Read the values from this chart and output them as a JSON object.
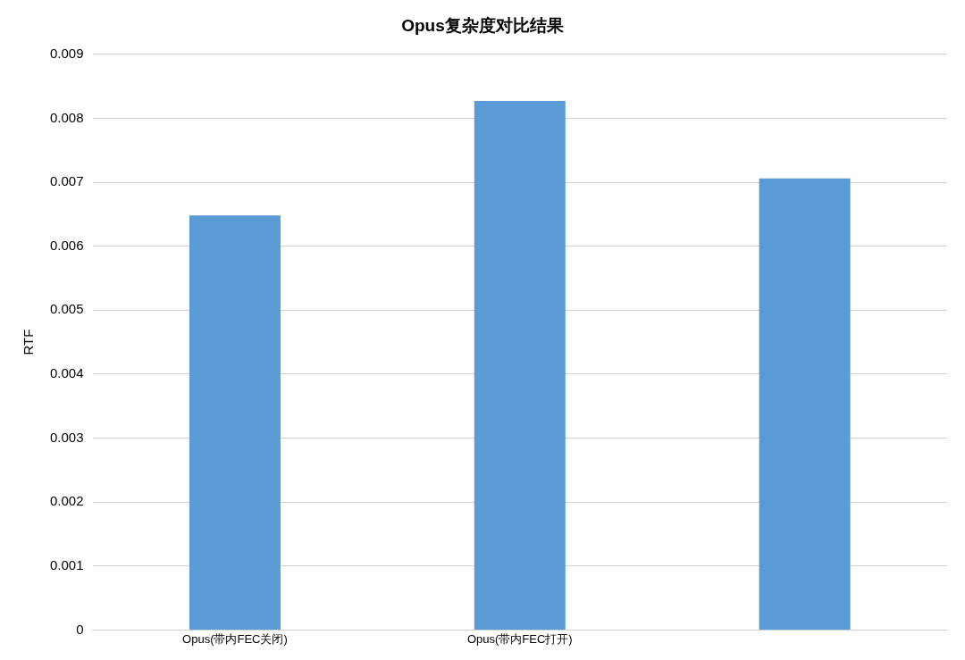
{
  "chart_data": {
    "type": "bar",
    "title": "Opus复杂度对比结果",
    "ylabel": "RTF",
    "categories": [
      "Opus(带内FEC关闭)",
      "Opus(带内FEC打开)",
      null
    ],
    "values": [
      0.00648,
      0.00827,
      0.00706
    ],
    "color": "#5b9bd5",
    "ylim": [
      0,
      0.009
    ],
    "yticks": [
      0,
      0.001,
      0.002,
      0.003,
      0.004,
      0.005,
      0.006,
      0.007,
      0.008,
      0.009
    ],
    "grid": "y",
    "legend": false
  }
}
